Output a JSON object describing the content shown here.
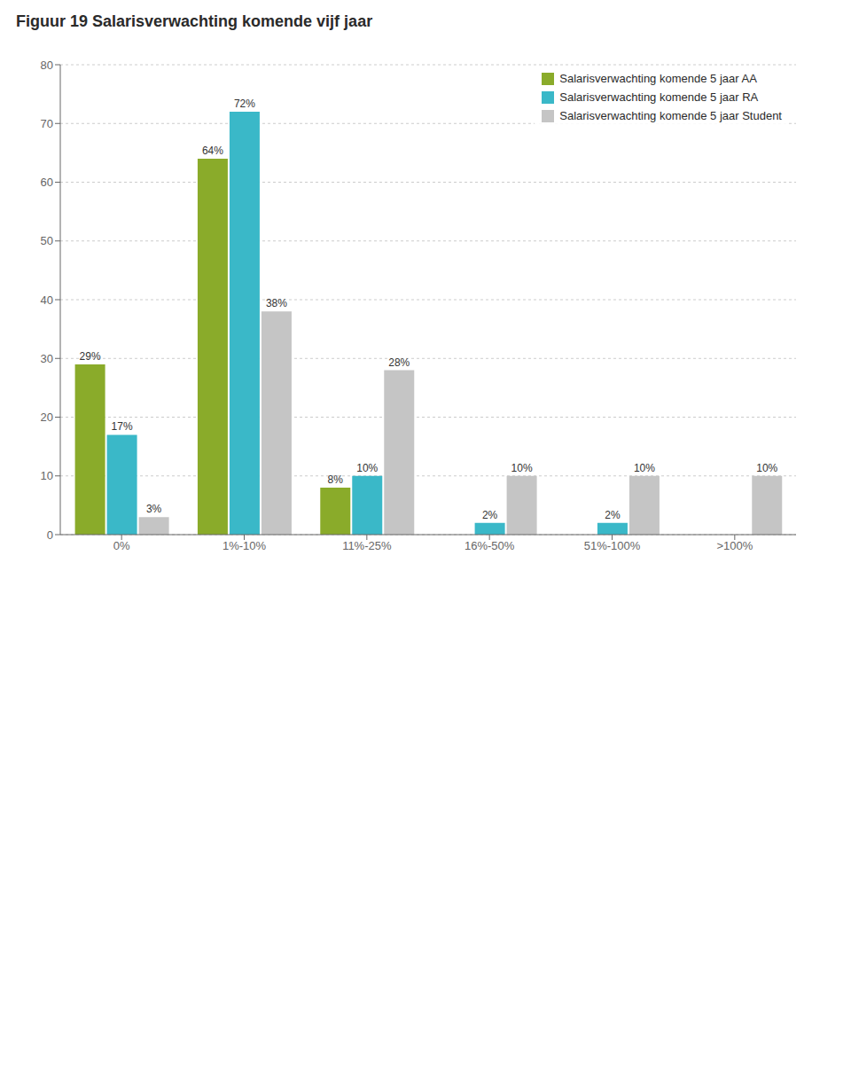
{
  "chart_data": {
    "type": "bar",
    "title": "Figuur 19 Salarisverwachting komende vijf jaar",
    "categories": [
      "0%",
      "1%-10%",
      "11%-25%",
      "16%-50%",
      "51%-100%",
      ">100%"
    ],
    "series": [
      {
        "name": "Salarisverwachting komende 5 jaar AA",
        "color": "#8aab2a",
        "values": [
          29,
          64,
          8,
          0,
          0,
          0
        ],
        "value_labels": [
          "29%",
          "64%",
          "8%",
          null,
          null,
          null
        ]
      },
      {
        "name": "Salarisverwachting komende 5 jaar RA",
        "color": "#3ab8c8",
        "values": [
          17,
          72,
          10,
          2,
          2,
          0
        ],
        "value_labels": [
          "17%",
          "72%",
          "10%",
          "2%",
          "2%",
          null
        ]
      },
      {
        "name": "Salarisverwachting komende 5 jaar Student",
        "color": "#c5c5c5",
        "values": [
          3,
          38,
          28,
          10,
          10,
          10
        ],
        "value_labels": [
          "3%",
          "38%",
          "28%",
          "10%",
          "10%",
          "10%"
        ]
      }
    ],
    "ylim": [
      0,
      80
    ],
    "yticks": [
      0,
      10,
      20,
      30,
      40,
      50,
      60,
      70,
      80
    ],
    "grid": true,
    "legend": "upper right",
    "data_labels": true
  }
}
